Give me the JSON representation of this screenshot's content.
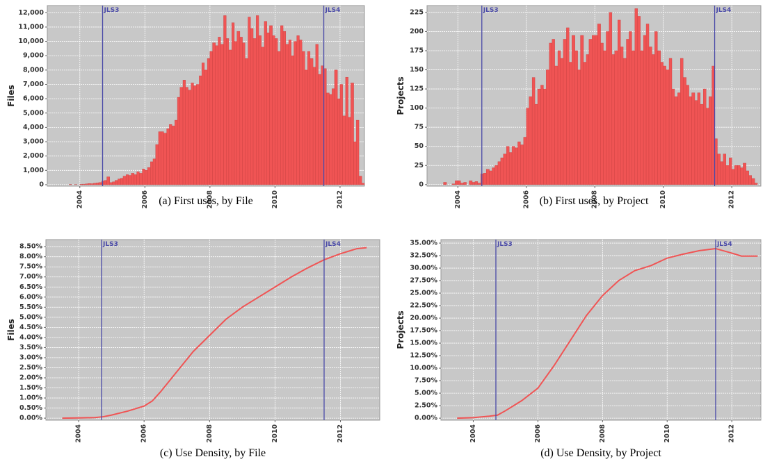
{
  "chart_data": [
    {
      "type": "histogram",
      "caption": "(a) First uses, by File",
      "ylabel": "Files",
      "color": "#f05454",
      "grid": true,
      "background": "#c8c8c8",
      "bins": [
        2003.5,
        2003.58,
        2003.67,
        2003.75,
        2003.83,
        2003.92,
        2004,
        2004.08,
        2004.17,
        2004.25,
        2004.33,
        2004.42,
        2004.5,
        2004.58,
        2004.67,
        2004.75,
        2004.83,
        2004.92,
        2005,
        2005.08,
        2005.17,
        2005.25,
        2005.33,
        2005.42,
        2005.5,
        2005.58,
        2005.67,
        2005.75,
        2005.83,
        2005.92,
        2006,
        2006.08,
        2006.17,
        2006.25,
        2006.33,
        2006.42,
        2006.5,
        2006.58,
        2006.67,
        2006.75,
        2006.83,
        2006.92,
        2007,
        2007.08,
        2007.17,
        2007.25,
        2007.33,
        2007.42,
        2007.5,
        2007.58,
        2007.67,
        2007.75,
        2007.83,
        2007.92,
        2008,
        2008.08,
        2008.17,
        2008.25,
        2008.33,
        2008.42,
        2008.5,
        2008.58,
        2008.67,
        2008.75,
        2008.83,
        2008.92,
        2009,
        2009.08,
        2009.17,
        2009.25,
        2009.33,
        2009.42,
        2009.5,
        2009.58,
        2009.67,
        2009.75,
        2009.83,
        2009.92,
        2010,
        2010.08,
        2010.17,
        2010.25,
        2010.33,
        2010.42,
        2010.5,
        2010.58,
        2010.67,
        2010.75,
        2010.83,
        2010.92,
        2011,
        2011.08,
        2011.17,
        2011.25,
        2011.33,
        2011.42,
        2011.5,
        2011.58,
        2011.67,
        2011.75,
        2011.83,
        2011.92,
        2012,
        2012.08,
        2012.17,
        2012.25,
        2012.33,
        2012.42,
        2012.5,
        2012.58,
        2012.67,
        2012.75,
        2012.83
      ],
      "values": [
        0,
        0,
        20,
        0,
        10,
        0,
        30,
        40,
        60,
        80,
        70,
        100,
        120,
        150,
        250,
        300,
        550,
        150,
        200,
        300,
        400,
        450,
        600,
        700,
        650,
        800,
        700,
        900,
        800,
        1100,
        1000,
        1200,
        1600,
        1800,
        2800,
        3700,
        3700,
        3600,
        3900,
        4200,
        4100,
        4500,
        6100,
        6800,
        7300,
        6800,
        6600,
        7100,
        6900,
        7000,
        7600,
        8500,
        8000,
        8800,
        9300,
        9900,
        9700,
        10300,
        9800,
        11800,
        10200,
        9400,
        11300,
        10000,
        10700,
        10300,
        9900,
        8800,
        11700,
        10900,
        10200,
        11800,
        10400,
        9600,
        11400,
        10600,
        11100,
        10400,
        10200,
        9300,
        11100,
        10700,
        9800,
        10100,
        9000,
        10000,
        10400,
        10100,
        9300,
        8000,
        9300,
        8800,
        8200,
        9800,
        7700,
        8300,
        8100,
        6400,
        6300,
        6700,
        8000,
        6000,
        7000,
        4800,
        7500,
        4700,
        7100,
        3000,
        4500,
        600,
        100,
        0
      ],
      "xlim": [
        2003.0,
        2012.75
      ],
      "xticks": [
        2004,
        2006,
        2008,
        2010,
        2012
      ],
      "ylim": [
        -100,
        12500
      ],
      "yticks": [
        0,
        {
          "value": 1000,
          "label": "1,000"
        },
        {
          "value": 2000,
          "label": "2,000"
        },
        {
          "value": 3000,
          "label": "3,000"
        },
        {
          "value": 4000,
          "label": "4,000"
        },
        {
          "value": 5000,
          "label": "5,000"
        },
        {
          "value": 6000,
          "label": "6,000"
        },
        {
          "value": 7000,
          "label": "7,000"
        },
        {
          "value": 8000,
          "label": "8,000"
        },
        {
          "value": 9000,
          "label": "9,000"
        },
        {
          "value": 10000,
          "label": "10,000"
        },
        {
          "value": 11000,
          "label": "11,000"
        },
        {
          "value": 12000,
          "label": "12,000"
        }
      ],
      "annotation_color": "#4a4aa8",
      "annotations": [
        {
          "x": 2004.7,
          "text": "JLS3"
        },
        {
          "x": 2011.5,
          "text": "JLS4"
        }
      ]
    },
    {
      "type": "histogram",
      "caption": "(b) First uses, by Project",
      "ylabel": "Projects",
      "color": "#f05454",
      "grid": true,
      "background": "#c8c8c8",
      "bins": [
        2003.5,
        2003.58,
        2003.67,
        2003.75,
        2003.83,
        2003.92,
        2004,
        2004.08,
        2004.17,
        2004.25,
        2004.33,
        2004.42,
        2004.5,
        2004.58,
        2004.67,
        2004.75,
        2004.83,
        2004.92,
        2005,
        2005.08,
        2005.17,
        2005.25,
        2005.33,
        2005.42,
        2005.5,
        2005.58,
        2005.67,
        2005.75,
        2005.83,
        2005.92,
        2006,
        2006.08,
        2006.17,
        2006.25,
        2006.33,
        2006.42,
        2006.5,
        2006.58,
        2006.67,
        2006.75,
        2006.83,
        2006.92,
        2007,
        2007.08,
        2007.17,
        2007.25,
        2007.33,
        2007.42,
        2007.5,
        2007.58,
        2007.67,
        2007.75,
        2007.83,
        2007.92,
        2008,
        2008.08,
        2008.17,
        2008.25,
        2008.33,
        2008.42,
        2008.5,
        2008.58,
        2008.67,
        2008.75,
        2008.83,
        2008.92,
        2009,
        2009.08,
        2009.17,
        2009.25,
        2009.33,
        2009.42,
        2009.5,
        2009.58,
        2009.67,
        2009.75,
        2009.83,
        2009.92,
        2010,
        2010.08,
        2010.17,
        2010.25,
        2010.33,
        2010.42,
        2010.5,
        2010.58,
        2010.67,
        2010.75,
        2010.83,
        2010.92,
        2011,
        2011.08,
        2011.17,
        2011.25,
        2011.33,
        2011.42,
        2011.5,
        2011.58,
        2011.67,
        2011.75,
        2011.83,
        2011.92,
        2012,
        2012.08,
        2012.17,
        2012.25,
        2012.33,
        2012.42,
        2012.5,
        2012.58,
        2012.67,
        2012.75,
        2012.83
      ],
      "values": [
        0,
        3,
        0,
        0,
        1,
        5,
        5,
        2,
        3,
        0,
        5,
        3,
        4,
        2,
        14,
        15,
        20,
        18,
        22,
        25,
        30,
        35,
        40,
        50,
        42,
        50,
        48,
        56,
        52,
        62,
        100,
        115,
        140,
        105,
        125,
        130,
        125,
        150,
        185,
        190,
        155,
        175,
        165,
        190,
        205,
        160,
        195,
        175,
        150,
        195,
        160,
        170,
        190,
        195,
        195,
        210,
        185,
        175,
        200,
        225,
        170,
        175,
        215,
        180,
        165,
        190,
        200,
        175,
        230,
        220,
        175,
        195,
        210,
        180,
        170,
        200,
        175,
        160,
        155,
        150,
        165,
        125,
        115,
        120,
        165,
        140,
        130,
        115,
        120,
        110,
        120,
        105,
        125,
        100,
        115,
        155,
        60,
        40,
        30,
        40,
        25,
        35,
        20,
        25,
        25,
        22,
        28,
        18,
        12,
        8,
        2,
        0
      ],
      "xlim": [
        2003.1,
        2012.85
      ],
      "xticks": [
        2004,
        2006,
        2008,
        2010,
        2012
      ],
      "ylim": [
        -2,
        234
      ],
      "yticks": [
        0,
        25,
        50,
        75,
        100,
        125,
        150,
        175,
        200,
        225
      ],
      "annotation_color": "#4a4aa8",
      "annotations": [
        {
          "x": 2004.7,
          "text": "JLS3"
        },
        {
          "x": 2011.5,
          "text": "JLS4"
        }
      ]
    },
    {
      "type": "line",
      "caption": "(c) Use Density, by File",
      "ylabel": "Files",
      "color": "#f05454",
      "grid": true,
      "background": "#c8c8c8",
      "x": [
        2003.5,
        2004,
        2004.5,
        2004.75,
        2005,
        2005.5,
        2006,
        2006.25,
        2006.5,
        2007,
        2007.5,
        2008,
        2008.5,
        2009,
        2009.5,
        2010,
        2010.5,
        2011,
        2011.5,
        2012,
        2012.5,
        2012.8
      ],
      "values": [
        0,
        0.01,
        0.03,
        0.07,
        0.15,
        0.35,
        0.6,
        0.85,
        1.3,
        2.3,
        3.3,
        4.1,
        4.9,
        5.5,
        6.0,
        6.5,
        7.0,
        7.45,
        7.85,
        8.15,
        8.4,
        8.45
      ],
      "xlim": [
        2003.0,
        2013.2
      ],
      "xticks": [
        2004,
        2006,
        2008,
        2010,
        2012
      ],
      "ylim": [
        -0.1,
        8.85
      ],
      "yticks": [
        {
          "value": 0,
          "label": "0.00%"
        },
        {
          "value": 0.5,
          "label": "0.50%"
        },
        {
          "value": 1,
          "label": "1.00%"
        },
        {
          "value": 1.5,
          "label": "1.50%"
        },
        {
          "value": 2,
          "label": "2.00%"
        },
        {
          "value": 2.5,
          "label": "2.50%"
        },
        {
          "value": 3,
          "label": "3.00%"
        },
        {
          "value": 3.5,
          "label": "3.50%"
        },
        {
          "value": 4,
          "label": "4.00%"
        },
        {
          "value": 4.5,
          "label": "4.50%"
        },
        {
          "value": 5,
          "label": "5.00%"
        },
        {
          "value": 5.5,
          "label": "5.50%"
        },
        {
          "value": 6,
          "label": "6.00%"
        },
        {
          "value": 6.5,
          "label": "6.50%"
        },
        {
          "value": 7,
          "label": "7.00%"
        },
        {
          "value": 7.5,
          "label": "7.50%"
        },
        {
          "value": 8,
          "label": "8.00%"
        },
        {
          "value": 8.5,
          "label": "8.50%"
        }
      ],
      "annotation_color": "#4a4aa8",
      "annotations": [
        {
          "x": 2004.7,
          "text": "JLS3"
        },
        {
          "x": 2011.5,
          "text": "JLS4"
        }
      ]
    },
    {
      "type": "line",
      "caption": "(d) Use Density, by Project",
      "ylabel": "Projects",
      "color": "#f05454",
      "grid": true,
      "background": "#c8c8c8",
      "x": [
        2003.5,
        2004,
        2004.5,
        2004.75,
        2005,
        2005.5,
        2006,
        2006.5,
        2007,
        2007.5,
        2008,
        2008.5,
        2009,
        2009.5,
        2010,
        2010.5,
        2011,
        2011.5,
        2012,
        2012.3,
        2012.8
      ],
      "values": [
        0,
        0.1,
        0.4,
        0.6,
        1.5,
        3.5,
        6.0,
        10.5,
        15.5,
        20.5,
        24.5,
        27.5,
        29.5,
        30.5,
        32.0,
        32.8,
        33.5,
        33.9,
        33.0,
        32.4,
        32.4
      ],
      "xlim": [
        2003.0,
        2012.9
      ],
      "xticks": [
        2004,
        2006,
        2008,
        2010,
        2012
      ],
      "ylim": [
        -0.4,
        35.7
      ],
      "yticks": [
        {
          "value": 0,
          "label": "0.00%"
        },
        {
          "value": 2.5,
          "label": "2.50%"
        },
        {
          "value": 5,
          "label": "5.00%"
        },
        {
          "value": 7.5,
          "label": "7.50%"
        },
        {
          "value": 10,
          "label": "10.00%"
        },
        {
          "value": 12.5,
          "label": "12.50%"
        },
        {
          "value": 15,
          "label": "15.00%"
        },
        {
          "value": 17.5,
          "label": "17.50%"
        },
        {
          "value": 20,
          "label": "20.00%"
        },
        {
          "value": 22.5,
          "label": "22.50%"
        },
        {
          "value": 25,
          "label": "25.00%"
        },
        {
          "value": 27.5,
          "label": "27.50%"
        },
        {
          "value": 30,
          "label": "30.00%"
        },
        {
          "value": 32.5,
          "label": "32.50%"
        },
        {
          "value": 35,
          "label": "35.00%"
        }
      ],
      "annotation_color": "#4a4aa8",
      "annotations": [
        {
          "x": 2004.7,
          "text": "JLS3"
        },
        {
          "x": 2011.5,
          "text": "JLS4"
        }
      ]
    }
  ]
}
